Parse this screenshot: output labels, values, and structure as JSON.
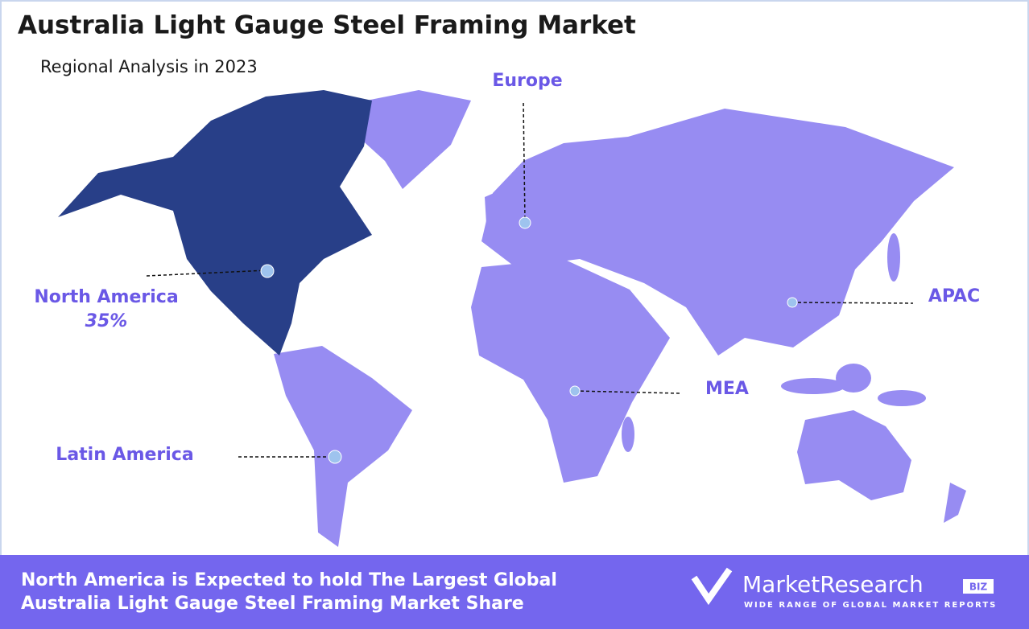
{
  "header": {
    "title": "Australia Light Gauge Steel Framing Market",
    "subtitle": "Regional Analysis in 2023"
  },
  "regions": [
    {
      "label": "North America",
      "share": "35%"
    },
    {
      "label": "Europe"
    },
    {
      "label": "APAC"
    },
    {
      "label": "MEA"
    },
    {
      "label": "Latin America"
    }
  ],
  "footer": {
    "lines": [
      "North America is Expected to hold The Largest Global",
      "Australia Light Gauge Steel Framing Market Share"
    ],
    "logo": {
      "name": "MarketResearch",
      "badge": "BIZ",
      "tagline": "WIDE RANGE OF GLOBAL MARKET REPORTS"
    }
  }
}
